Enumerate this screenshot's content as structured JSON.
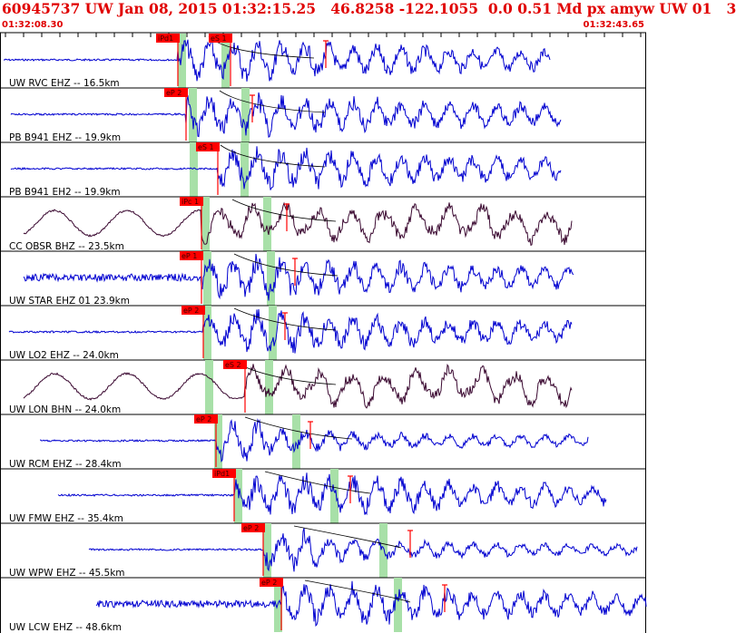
{
  "header": {
    "title": "60945737 UW Jan 08, 2015 01:32:15.25   46.8258 -122.1055  0.0 0.51 Md px amyw UW 01   3",
    "start_time": "01:32:08.30",
    "end_time": "01:32:43.65"
  },
  "colors": {
    "trace": "#0000d0",
    "trace_alt": "#3a0830",
    "pick": "#ff0000",
    "window": "#a8e0a8",
    "header_text": "#e00000"
  },
  "traces": [
    {
      "label": "UW RVC EHZ -- 16.5km",
      "picks": [
        "iPd1",
        "eS 1"
      ],
      "color": "blue",
      "shape": "burst"
    },
    {
      "label": "PB B941 EHZ -- 19.9km",
      "picks": [
        "eP 2"
      ],
      "color": "blue",
      "shape": "burst"
    },
    {
      "label": "PB B941 EH2 -- 19.9km",
      "picks": [
        "eS 1"
      ],
      "color": "blue",
      "shape": "burst"
    },
    {
      "label": "CC OBSR BHZ -- 23.5km",
      "picks": [
        "iPc 1"
      ],
      "color": "alt",
      "shape": "wave"
    },
    {
      "label": "UW STAR EHZ 01 23.9km",
      "picks": [
        "eP 1"
      ],
      "color": "blue",
      "shape": "noisy"
    },
    {
      "label": "UW LO2 EHZ -- 24.0km",
      "picks": [
        "eP 2"
      ],
      "color": "blue",
      "shape": "burst"
    },
    {
      "label": "UW LON BHN -- 24.0km",
      "picks": [
        "eS 2"
      ],
      "color": "alt",
      "shape": "wave"
    },
    {
      "label": "UW RCM EHZ -- 28.4km",
      "picks": [
        "eP 2"
      ],
      "color": "blue",
      "shape": "quiet"
    },
    {
      "label": "UW FMW EHZ -- 35.4km",
      "picks": [
        "iPd1"
      ],
      "color": "blue",
      "shape": "burst"
    },
    {
      "label": "UW WPW EHZ -- 45.5km",
      "picks": [
        "eP 2"
      ],
      "color": "blue",
      "shape": "quiet"
    },
    {
      "label": "UW LCW EHZ -- 48.6km",
      "picks": [
        "eP 2"
      ],
      "color": "blue",
      "shape": "noisy"
    }
  ]
}
